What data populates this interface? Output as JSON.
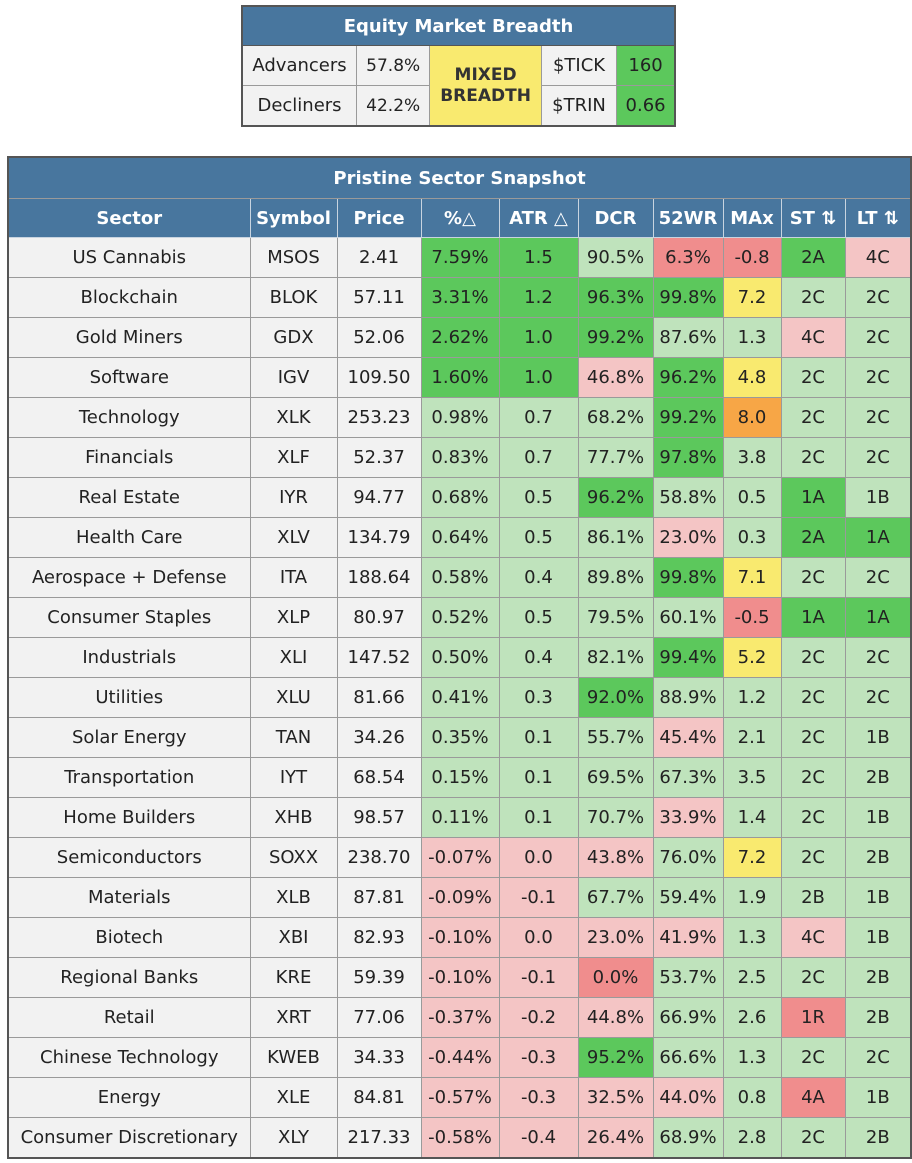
{
  "breadth": {
    "title": "Equity Market Breadth",
    "advancers_label": "Advancers",
    "advancers_value": "57.8%",
    "decliners_label": "Decliners",
    "decliners_value": "42.2%",
    "status_line1": "MIXED",
    "status_line2": "BREADTH",
    "tick_label": "$TICK",
    "tick_value": "160",
    "trin_label": "$TRIN",
    "trin_value": "0.66"
  },
  "sectors": {
    "title": "Pristine Sector Snapshot",
    "headers": [
      "Sector",
      "Symbol",
      "Price",
      "%△",
      "ATR △",
      "DCR",
      "52WR",
      "MAx",
      "ST ⇅",
      "LT ⇅"
    ],
    "colors": {
      "dark_green": "#5cc85c",
      "light_green": "#bfe3bc",
      "light_pink": "#f4c5c5",
      "dark_pink": "#f08d8d",
      "yellow": "#f9ea6f",
      "orange": "#f7a646",
      "header_blue": "#48769e"
    },
    "rows": [
      {
        "sector": "US Cannabis",
        "symbol": "MSOS",
        "price": "2.41",
        "pct": "7.59%",
        "pct_c": "dg",
        "atr": "1.5",
        "atr_c": "dg",
        "dcr": "90.5%",
        "dcr_c": "lg",
        "wr": "6.3%",
        "wr_c": "dp",
        "max": "-0.8",
        "max_c": "dp",
        "st": "2A",
        "st_c": "dg",
        "lt": "4C",
        "lt_c": "lp"
      },
      {
        "sector": "Blockchain",
        "symbol": "BLOK",
        "price": "57.11",
        "pct": "3.31%",
        "pct_c": "dg",
        "atr": "1.2",
        "atr_c": "dg",
        "dcr": "96.3%",
        "dcr_c": "dg",
        "wr": "99.8%",
        "wr_c": "dg",
        "max": "7.2",
        "max_c": "y",
        "st": "2C",
        "st_c": "lg",
        "lt": "2C",
        "lt_c": "lg"
      },
      {
        "sector": "Gold Miners",
        "symbol": "GDX",
        "price": "52.06",
        "pct": "2.62%",
        "pct_c": "dg",
        "atr": "1.0",
        "atr_c": "dg",
        "dcr": "99.2%",
        "dcr_c": "dg",
        "wr": "87.6%",
        "wr_c": "lg",
        "max": "1.3",
        "max_c": "lg",
        "st": "4C",
        "st_c": "lp",
        "lt": "2C",
        "lt_c": "lg"
      },
      {
        "sector": "Software",
        "symbol": "IGV",
        "price": "109.50",
        "pct": "1.60%",
        "pct_c": "dg",
        "atr": "1.0",
        "atr_c": "dg",
        "dcr": "46.8%",
        "dcr_c": "lp",
        "wr": "96.2%",
        "wr_c": "dg",
        "max": "4.8",
        "max_c": "y",
        "st": "2C",
        "st_c": "lg",
        "lt": "2C",
        "lt_c": "lg"
      },
      {
        "sector": "Technology",
        "symbol": "XLK",
        "price": "253.23",
        "pct": "0.98%",
        "pct_c": "lg",
        "atr": "0.7",
        "atr_c": "lg",
        "dcr": "68.2%",
        "dcr_c": "lg",
        "wr": "99.2%",
        "wr_c": "dg",
        "max": "8.0",
        "max_c": "o",
        "st": "2C",
        "st_c": "lg",
        "lt": "2C",
        "lt_c": "lg"
      },
      {
        "sector": "Financials",
        "symbol": "XLF",
        "price": "52.37",
        "pct": "0.83%",
        "pct_c": "lg",
        "atr": "0.7",
        "atr_c": "lg",
        "dcr": "77.7%",
        "dcr_c": "lg",
        "wr": "97.8%",
        "wr_c": "dg",
        "max": "3.8",
        "max_c": "lg",
        "st": "2C",
        "st_c": "lg",
        "lt": "2C",
        "lt_c": "lg"
      },
      {
        "sector": "Real Estate",
        "symbol": "IYR",
        "price": "94.77",
        "pct": "0.68%",
        "pct_c": "lg",
        "atr": "0.5",
        "atr_c": "lg",
        "dcr": "96.2%",
        "dcr_c": "dg",
        "wr": "58.8%",
        "wr_c": "lg",
        "max": "0.5",
        "max_c": "lg",
        "st": "1A",
        "st_c": "dg",
        "lt": "1B",
        "lt_c": "lg"
      },
      {
        "sector": "Health Care",
        "symbol": "XLV",
        "price": "134.79",
        "pct": "0.64%",
        "pct_c": "lg",
        "atr": "0.5",
        "atr_c": "lg",
        "dcr": "86.1%",
        "dcr_c": "lg",
        "wr": "23.0%",
        "wr_c": "lp",
        "max": "0.3",
        "max_c": "lg",
        "st": "2A",
        "st_c": "dg",
        "lt": "1A",
        "lt_c": "dg"
      },
      {
        "sector": "Aerospace + Defense",
        "symbol": "ITA",
        "price": "188.64",
        "pct": "0.58%",
        "pct_c": "lg",
        "atr": "0.4",
        "atr_c": "lg",
        "dcr": "89.8%",
        "dcr_c": "lg",
        "wr": "99.8%",
        "wr_c": "dg",
        "max": "7.1",
        "max_c": "y",
        "st": "2C",
        "st_c": "lg",
        "lt": "2C",
        "lt_c": "lg"
      },
      {
        "sector": "Consumer Staples",
        "symbol": "XLP",
        "price": "80.97",
        "pct": "0.52%",
        "pct_c": "lg",
        "atr": "0.5",
        "atr_c": "lg",
        "dcr": "79.5%",
        "dcr_c": "lg",
        "wr": "60.1%",
        "wr_c": "lg",
        "max": "-0.5",
        "max_c": "dp",
        "st": "1A",
        "st_c": "dg",
        "lt": "1A",
        "lt_c": "dg"
      },
      {
        "sector": "Industrials",
        "symbol": "XLI",
        "price": "147.52",
        "pct": "0.50%",
        "pct_c": "lg",
        "atr": "0.4",
        "atr_c": "lg",
        "dcr": "82.1%",
        "dcr_c": "lg",
        "wr": "99.4%",
        "wr_c": "dg",
        "max": "5.2",
        "max_c": "y",
        "st": "2C",
        "st_c": "lg",
        "lt": "2C",
        "lt_c": "lg"
      },
      {
        "sector": "Utilities",
        "symbol": "XLU",
        "price": "81.66",
        "pct": "0.41%",
        "pct_c": "lg",
        "atr": "0.3",
        "atr_c": "lg",
        "dcr": "92.0%",
        "dcr_c": "dg",
        "wr": "88.9%",
        "wr_c": "lg",
        "max": "1.2",
        "max_c": "lg",
        "st": "2C",
        "st_c": "lg",
        "lt": "2C",
        "lt_c": "lg"
      },
      {
        "sector": "Solar Energy",
        "symbol": "TAN",
        "price": "34.26",
        "pct": "0.35%",
        "pct_c": "lg",
        "atr": "0.1",
        "atr_c": "lg",
        "dcr": "55.7%",
        "dcr_c": "lg",
        "wr": "45.4%",
        "wr_c": "lp",
        "max": "2.1",
        "max_c": "lg",
        "st": "2C",
        "st_c": "lg",
        "lt": "1B",
        "lt_c": "lg"
      },
      {
        "sector": "Transportation",
        "symbol": "IYT",
        "price": "68.54",
        "pct": "0.15%",
        "pct_c": "lg",
        "atr": "0.1",
        "atr_c": "lg",
        "dcr": "69.5%",
        "dcr_c": "lg",
        "wr": "67.3%",
        "wr_c": "lg",
        "max": "3.5",
        "max_c": "lg",
        "st": "2C",
        "st_c": "lg",
        "lt": "2B",
        "lt_c": "lg"
      },
      {
        "sector": "Home Builders",
        "symbol": "XHB",
        "price": "98.57",
        "pct": "0.11%",
        "pct_c": "lg",
        "atr": "0.1",
        "atr_c": "lg",
        "dcr": "70.7%",
        "dcr_c": "lg",
        "wr": "33.9%",
        "wr_c": "lp",
        "max": "1.4",
        "max_c": "lg",
        "st": "2C",
        "st_c": "lg",
        "lt": "1B",
        "lt_c": "lg"
      },
      {
        "sector": "Semiconductors",
        "symbol": "SOXX",
        "price": "238.70",
        "pct": "-0.07%",
        "pct_c": "lp",
        "atr": "0.0",
        "atr_c": "lp",
        "dcr": "43.8%",
        "dcr_c": "lp",
        "wr": "76.0%",
        "wr_c": "lg",
        "max": "7.2",
        "max_c": "y",
        "st": "2C",
        "st_c": "lg",
        "lt": "2B",
        "lt_c": "lg"
      },
      {
        "sector": "Materials",
        "symbol": "XLB",
        "price": "87.81",
        "pct": "-0.09%",
        "pct_c": "lp",
        "atr": "-0.1",
        "atr_c": "lp",
        "dcr": "67.7%",
        "dcr_c": "lg",
        "wr": "59.4%",
        "wr_c": "lg",
        "max": "1.9",
        "max_c": "lg",
        "st": "2B",
        "st_c": "lg",
        "lt": "1B",
        "lt_c": "lg"
      },
      {
        "sector": "Biotech",
        "symbol": "XBI",
        "price": "82.93",
        "pct": "-0.10%",
        "pct_c": "lp",
        "atr": "0.0",
        "atr_c": "lp",
        "dcr": "23.0%",
        "dcr_c": "lp",
        "wr": "41.9%",
        "wr_c": "lp",
        "max": "1.3",
        "max_c": "lg",
        "st": "4C",
        "st_c": "lp",
        "lt": "1B",
        "lt_c": "lg"
      },
      {
        "sector": "Regional Banks",
        "symbol": "KRE",
        "price": "59.39",
        "pct": "-0.10%",
        "pct_c": "lp",
        "atr": "-0.1",
        "atr_c": "lp",
        "dcr": "0.0%",
        "dcr_c": "dp",
        "wr": "53.7%",
        "wr_c": "lg",
        "max": "2.5",
        "max_c": "lg",
        "st": "2C",
        "st_c": "lg",
        "lt": "2B",
        "lt_c": "lg"
      },
      {
        "sector": "Retail",
        "symbol": "XRT",
        "price": "77.06",
        "pct": "-0.37%",
        "pct_c": "lp",
        "atr": "-0.2",
        "atr_c": "lp",
        "dcr": "44.8%",
        "dcr_c": "lp",
        "wr": "66.9%",
        "wr_c": "lg",
        "max": "2.6",
        "max_c": "lg",
        "st": "1R",
        "st_c": "dp",
        "lt": "2B",
        "lt_c": "lg"
      },
      {
        "sector": "Chinese Technology",
        "symbol": "KWEB",
        "price": "34.33",
        "pct": "-0.44%",
        "pct_c": "lp",
        "atr": "-0.3",
        "atr_c": "lp",
        "dcr": "95.2%",
        "dcr_c": "dg",
        "wr": "66.6%",
        "wr_c": "lg",
        "max": "1.3",
        "max_c": "lg",
        "st": "2C",
        "st_c": "lg",
        "lt": "2C",
        "lt_c": "lg"
      },
      {
        "sector": "Energy",
        "symbol": "XLE",
        "price": "84.81",
        "pct": "-0.57%",
        "pct_c": "lp",
        "atr": "-0.3",
        "atr_c": "lp",
        "dcr": "32.5%",
        "dcr_c": "lp",
        "wr": "44.0%",
        "wr_c": "lp",
        "max": "0.8",
        "max_c": "lg",
        "st": "4A",
        "st_c": "dp",
        "lt": "1B",
        "lt_c": "lg"
      },
      {
        "sector": "Consumer Discretionary",
        "symbol": "XLY",
        "price": "217.33",
        "pct": "-0.58%",
        "pct_c": "lp",
        "atr": "-0.4",
        "atr_c": "lp",
        "dcr": "26.4%",
        "dcr_c": "lp",
        "wr": "68.9%",
        "wr_c": "lg",
        "max": "2.8",
        "max_c": "lg",
        "st": "2C",
        "st_c": "lg",
        "lt": "2B",
        "lt_c": "lg"
      }
    ]
  }
}
